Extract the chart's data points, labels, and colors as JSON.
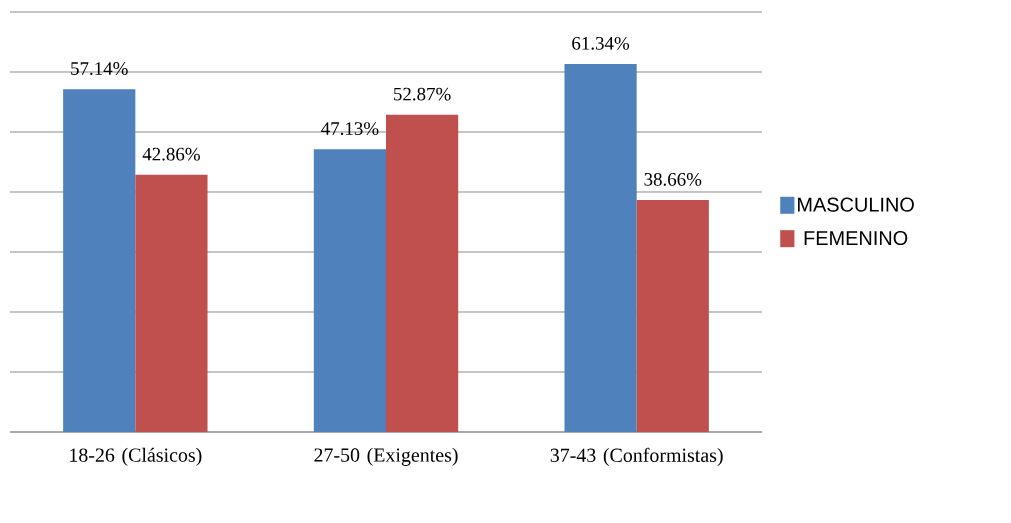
{
  "chart_data": {
    "type": "bar",
    "categories": [
      "18-26 (Clásicos)",
      "27-50 (Exigentes)",
      "37-43 (Conformistas)"
    ],
    "series": [
      {
        "name": "MASCULINO",
        "color": "#4f81bd",
        "values": [
          57.14,
          47.13,
          61.34
        ],
        "value_labels": [
          "57.14%",
          "47.13%",
          "61.34%"
        ]
      },
      {
        "name": "FEMENINO",
        "color": "#c0504d",
        "values": [
          42.86,
          52.87,
          38.66
        ],
        "value_labels": [
          "42.86%",
          "52.87%",
          "38.66%"
        ]
      }
    ],
    "ylim": [
      0,
      70
    ],
    "yticks": [
      0,
      10,
      20,
      30,
      40,
      50,
      60,
      70
    ],
    "grid": "y",
    "legend": "right",
    "tick_labels": "x"
  }
}
